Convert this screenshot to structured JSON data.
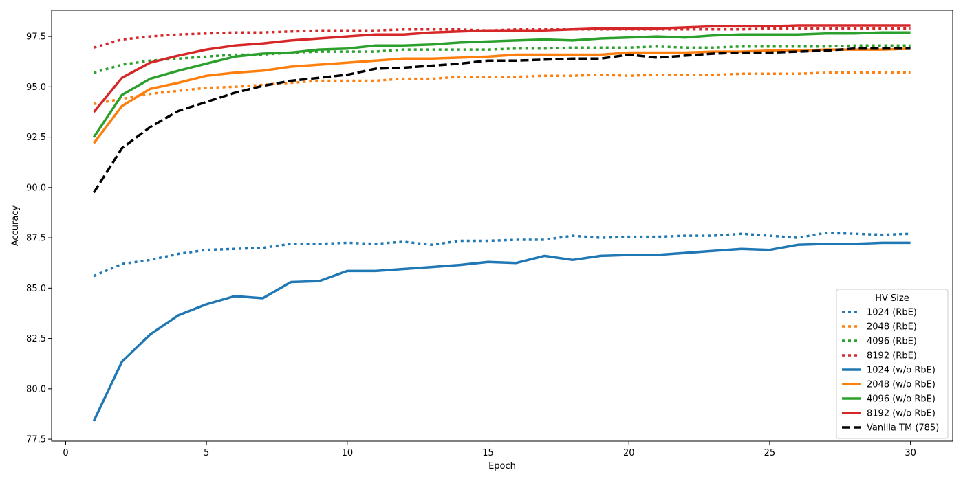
{
  "chart_data": {
    "type": "line",
    "title": "",
    "xlabel": "Epoch",
    "ylabel": "Accuracy",
    "xlim": [
      -0.5,
      31.5
    ],
    "ylim": [
      77.4,
      98.8
    ],
    "xticks": [
      "0",
      "5",
      "10",
      "15",
      "20",
      "25",
      "30"
    ],
    "yticks": [
      "77.5",
      "80.0",
      "82.5",
      "85.0",
      "87.5",
      "90.0",
      "92.5",
      "95.0",
      "97.5"
    ],
    "legend": {
      "title": "HV Size",
      "position": "lower-right"
    },
    "grid": false,
    "x": [
      1,
      2,
      3,
      4,
      5,
      6,
      7,
      8,
      9,
      10,
      11,
      12,
      13,
      14,
      15,
      16,
      17,
      18,
      19,
      20,
      21,
      22,
      23,
      24,
      25,
      26,
      27,
      28,
      29,
      30
    ],
    "series": [
      {
        "name": "1024 (RbE)",
        "color": "#1f77b4",
        "style": "dotted",
        "values": [
          85.6,
          86.2,
          86.4,
          86.7,
          86.9,
          86.95,
          87.0,
          87.2,
          87.2,
          87.25,
          87.2,
          87.3,
          87.15,
          87.35,
          87.35,
          87.4,
          87.4,
          87.6,
          87.5,
          87.55,
          87.55,
          87.6,
          87.6,
          87.7,
          87.6,
          87.5,
          87.75,
          87.7,
          87.65,
          87.7
        ]
      },
      {
        "name": "2048 (RbE)",
        "color": "#ff7f0e",
        "style": "dotted",
        "values": [
          94.15,
          94.4,
          94.65,
          94.8,
          94.95,
          95.0,
          95.1,
          95.2,
          95.3,
          95.3,
          95.3,
          95.4,
          95.4,
          95.5,
          95.5,
          95.5,
          95.55,
          95.55,
          95.6,
          95.55,
          95.6,
          95.6,
          95.6,
          95.65,
          95.65,
          95.65,
          95.7,
          95.7,
          95.7,
          95.7
        ]
      },
      {
        "name": "4096 (RbE)",
        "color": "#2ca02c",
        "style": "dotted",
        "values": [
          95.7,
          96.1,
          96.3,
          96.4,
          96.5,
          96.6,
          96.6,
          96.7,
          96.75,
          96.75,
          96.75,
          96.85,
          96.85,
          96.85,
          96.85,
          96.9,
          96.9,
          96.95,
          96.95,
          96.95,
          97.0,
          96.95,
          96.95,
          97.0,
          97.0,
          97.0,
          97.0,
          97.05,
          97.05,
          97.05
        ]
      },
      {
        "name": "8192 (RbE)",
        "color": "#d62728",
        "style": "dotted",
        "values": [
          96.95,
          97.35,
          97.5,
          97.6,
          97.65,
          97.7,
          97.7,
          97.75,
          97.8,
          97.8,
          97.8,
          97.85,
          97.85,
          97.85,
          97.8,
          97.85,
          97.85,
          97.85,
          97.85,
          97.85,
          97.85,
          97.85,
          97.85,
          97.85,
          97.9,
          97.9,
          97.9,
          97.9,
          97.9,
          97.9
        ]
      },
      {
        "name": "1024 (w/o RbE)",
        "color": "#1f77b4",
        "style": "solid",
        "values": [
          78.4,
          81.35,
          82.7,
          83.65,
          84.2,
          84.6,
          84.5,
          85.3,
          85.35,
          85.85,
          85.85,
          85.95,
          86.05,
          86.15,
          86.3,
          86.25,
          86.6,
          86.4,
          86.6,
          86.65,
          86.65,
          86.75,
          86.85,
          86.95,
          86.9,
          87.15,
          87.2,
          87.2,
          87.25,
          87.25
        ]
      },
      {
        "name": "2048 (w/o RbE)",
        "color": "#ff7f0e",
        "style": "solid",
        "values": [
          92.2,
          94.05,
          94.9,
          95.2,
          95.55,
          95.7,
          95.8,
          96.0,
          96.1,
          96.2,
          96.3,
          96.4,
          96.4,
          96.45,
          96.5,
          96.6,
          96.6,
          96.6,
          96.6,
          96.7,
          96.7,
          96.7,
          96.75,
          96.75,
          96.8,
          96.8,
          96.85,
          96.85,
          96.85,
          96.9
        ]
      },
      {
        "name": "4096 (w/o RbE)",
        "color": "#2ca02c",
        "style": "solid",
        "values": [
          92.5,
          94.6,
          95.4,
          95.8,
          96.15,
          96.5,
          96.65,
          96.7,
          96.85,
          96.9,
          97.05,
          97.05,
          97.1,
          97.2,
          97.25,
          97.3,
          97.35,
          97.3,
          97.4,
          97.45,
          97.5,
          97.45,
          97.55,
          97.6,
          97.6,
          97.6,
          97.65,
          97.65,
          97.7,
          97.7
        ]
      },
      {
        "name": "8192 (w/o RbE)",
        "color": "#d62728",
        "style": "solid",
        "values": [
          93.75,
          95.45,
          96.2,
          96.55,
          96.85,
          97.05,
          97.15,
          97.3,
          97.4,
          97.5,
          97.6,
          97.6,
          97.7,
          97.75,
          97.8,
          97.8,
          97.8,
          97.85,
          97.9,
          97.9,
          97.9,
          97.95,
          98.0,
          98.0,
          98.0,
          98.05,
          98.05,
          98.05,
          98.05,
          98.05
        ]
      },
      {
        "name": "Vanilla TM (785)",
        "color": "#000000",
        "style": "dashed",
        "values": [
          89.75,
          91.95,
          93.0,
          93.8,
          94.25,
          94.7,
          95.05,
          95.3,
          95.45,
          95.6,
          95.9,
          95.95,
          96.05,
          96.15,
          96.3,
          96.3,
          96.35,
          96.4,
          96.4,
          96.6,
          96.45,
          96.55,
          96.65,
          96.7,
          96.7,
          96.75,
          96.8,
          96.9,
          96.9,
          96.9
        ]
      }
    ]
  }
}
